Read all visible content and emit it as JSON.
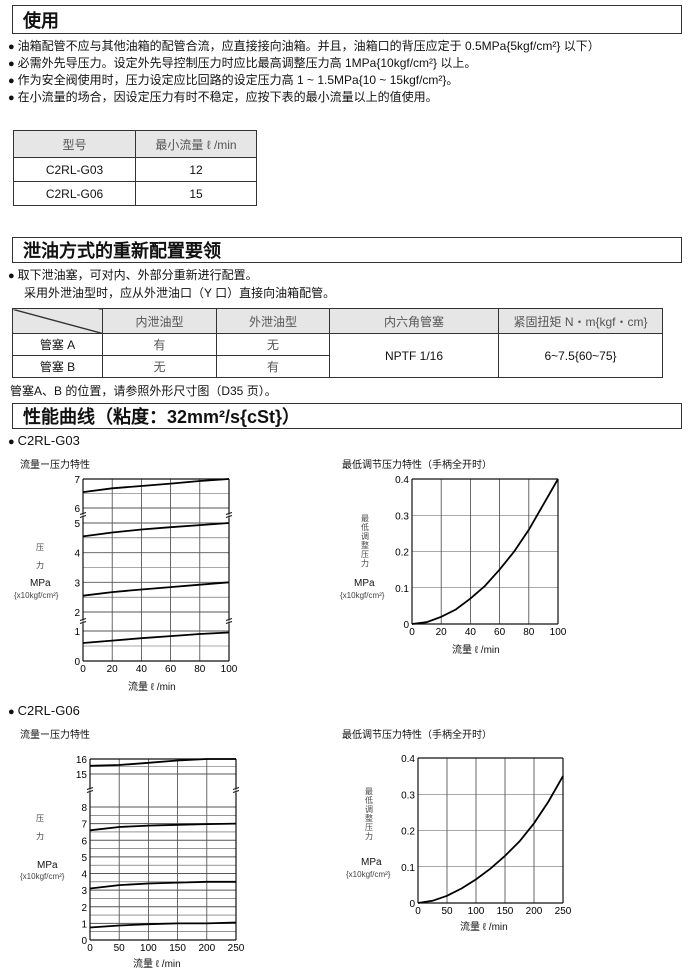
{
  "sections": {
    "usage": {
      "title": "使用",
      "bullets": [
        "油箱配管不应与其他油箱的配管合流，应直接接向油箱。并且，油箱口的背压应定于 0.5MPa{5kgf/cm²} 以下）",
        "必需外先导压力。设定外先导控制压力时应比最高调整压力高 1MPa{10kgf/cm²} 以上。",
        "作为安全阀使用时，压力设定应比回路的设定压力高 1 ~ 1.5MPa{10 ~ 15kgf/cm²}。",
        "在小流量的场合，因设定压力有时不稳定，应按下表的最小流量以上的值使用。"
      ],
      "table": {
        "headers": [
          "型号",
          "最小流量 ℓ /min"
        ],
        "rows": [
          [
            "C2RL-G03",
            "12"
          ],
          [
            "C2RL-G06",
            "15"
          ]
        ]
      }
    },
    "drain": {
      "title": "泄油方式的重新配置要领",
      "bullet": "取下泄油塞，可对内、外部分重新进行配置。",
      "line2": "采用外泄油型时，应从外泄油口（Y 口）直接向油箱配管。",
      "table": {
        "headers": [
          "",
          "内泄油型",
          "外泄油型",
          "内六角管塞",
          "紧固扭矩 N・m{kgf・cm}"
        ],
        "rows": [
          [
            "管塞 A",
            "有",
            "无"
          ],
          [
            "管塞 B",
            "无",
            "有"
          ]
        ],
        "plug": "NPTF 1/16",
        "torque": "6~7.5{60~75}"
      },
      "note": "管塞A、B 的位置，请参照外形尺寸图（D35 页）。"
    },
    "perf": {
      "title": "性能曲线（粘度：32mm²/s{cSt}）",
      "g03": "C2RL-G03",
      "g06": "C2RL-G06"
    }
  },
  "axis_text": {
    "ylabel_chars": [
      "压",
      "力"
    ],
    "ylabel_min_chars": [
      "最",
      "低",
      "调",
      "整",
      "压",
      "力"
    ],
    "unit": "MPa",
    "unit_sub": "{x10kgf/cm²}",
    "xlabel": "流量 ℓ /min"
  },
  "chart_data": [
    {
      "type": "line",
      "title": "流量ー压力特性",
      "xlabel": "流量 ℓ /min",
      "ylabel": "压力 MPa {x10kgf/cm²}",
      "xlim": [
        0,
        100
      ],
      "xticks": [
        0,
        20,
        40,
        60,
        80,
        100
      ],
      "y_segments": [
        [
          6,
          7
        ],
        [
          2,
          5
        ],
        [
          0,
          1
        ]
      ],
      "yticks": [
        0,
        1,
        2,
        3,
        4,
        5,
        6,
        7
      ],
      "grid": true,
      "x": [
        0,
        20,
        40,
        60,
        80,
        100
      ],
      "series": [
        {
          "values": [
            6.55,
            6.68,
            6.76,
            6.84,
            6.93,
            7.0
          ]
        },
        {
          "values": [
            4.55,
            4.68,
            4.78,
            4.86,
            4.93,
            5.0
          ]
        },
        {
          "values": [
            2.55,
            2.67,
            2.76,
            2.84,
            2.92,
            3.0
          ]
        },
        {
          "values": [
            0.6,
            0.68,
            0.76,
            0.83,
            0.9,
            0.95
          ]
        }
      ]
    },
    {
      "type": "line",
      "title": "最低调节压力特性（手柄全开时）",
      "xlabel": "流量 ℓ /min",
      "ylabel": "最低调整压力 MPa {x10kgf/cm²}",
      "xlim": [
        0,
        100
      ],
      "ylim": [
        0,
        0.4
      ],
      "xticks": [
        0,
        20,
        40,
        60,
        80,
        100
      ],
      "yticks": [
        0,
        0.1,
        0.2,
        0.3,
        0.4
      ],
      "grid": true,
      "x": [
        0,
        10,
        20,
        30,
        40,
        50,
        60,
        70,
        80,
        90,
        100
      ],
      "series": [
        {
          "values": [
            0,
            0.005,
            0.02,
            0.04,
            0.07,
            0.105,
            0.15,
            0.2,
            0.26,
            0.33,
            0.4
          ]
        }
      ]
    },
    {
      "type": "line",
      "title": "流量ー压力特性",
      "xlabel": "流量 ℓ /min",
      "ylabel": "压力 MPa {x10kgf/cm²}",
      "xlim": [
        0,
        250
      ],
      "xticks": [
        0,
        50,
        100,
        150,
        200,
        250
      ],
      "y_segments": [
        [
          15,
          16
        ],
        [
          0,
          8
        ]
      ],
      "yticks": [
        0,
        1,
        2,
        3,
        4,
        5,
        6,
        7,
        8,
        15,
        16
      ],
      "grid": true,
      "x": [
        0,
        50,
        100,
        150,
        200,
        250
      ],
      "series": [
        {
          "values": [
            15.55,
            15.6,
            15.75,
            15.9,
            16.0,
            16.0
          ]
        },
        {
          "values": [
            6.6,
            6.8,
            6.88,
            6.93,
            6.97,
            7.0
          ]
        },
        {
          "values": [
            3.1,
            3.3,
            3.4,
            3.45,
            3.5,
            3.5
          ]
        },
        {
          "values": [
            0.75,
            0.87,
            0.95,
            1.0,
            1.0,
            1.05
          ]
        }
      ]
    },
    {
      "type": "line",
      "title": "最低调节压力特性（手柄全开时）",
      "xlabel": "流量 ℓ /min",
      "ylabel": "最低调整压力 MPa {x10kgf/cm²}",
      "xlim": [
        0,
        250
      ],
      "ylim": [
        0,
        0.4
      ],
      "xticks": [
        0,
        50,
        100,
        150,
        200,
        250
      ],
      "yticks": [
        0,
        0.1,
        0.2,
        0.3,
        0.4
      ],
      "grid": true,
      "x": [
        0,
        25,
        50,
        75,
        100,
        125,
        150,
        175,
        200,
        225,
        250
      ],
      "series": [
        {
          "values": [
            0,
            0.006,
            0.02,
            0.04,
            0.065,
            0.095,
            0.13,
            0.17,
            0.22,
            0.28,
            0.35
          ]
        }
      ]
    }
  ]
}
